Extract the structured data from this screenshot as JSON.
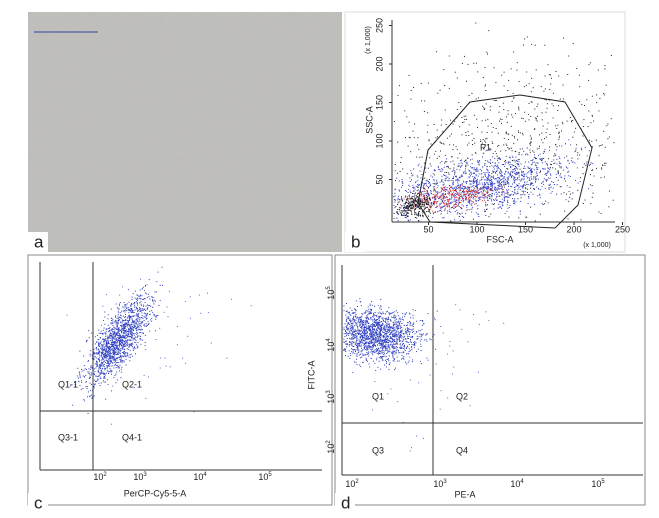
{
  "panels": [
    {
      "label": "a"
    },
    {
      "label": "b",
      "y_title": "SSC-A",
      "x_title": "FSC-A",
      "y_unit": "(x 1,000)",
      "x_unit": "(x 1,000)",
      "xticks": [
        50,
        100,
        150,
        200,
        250
      ],
      "yticks": [
        50,
        100,
        150,
        200,
        250
      ],
      "gate": "P1"
    },
    {
      "label": "c",
      "x_title": "PerCP-Cy5-5-A",
      "xticks": [
        {
          "base": "10",
          "exp": "2"
        },
        {
          "base": "10",
          "exp": "3"
        },
        {
          "base": "10",
          "exp": "4"
        },
        {
          "base": "10",
          "exp": "5"
        }
      ],
      "quadrants": [
        "Q1-1",
        "Q2-1",
        "Q3-1",
        "Q4-1"
      ]
    },
    {
      "label": "d",
      "x_title": "PE-A",
      "y_title": "FITC-A",
      "xticks": [
        {
          "base": "10",
          "exp": "2"
        },
        {
          "base": "10",
          "exp": "3"
        },
        {
          "base": "10",
          "exp": "4"
        },
        {
          "base": "10",
          "exp": "5"
        }
      ],
      "yticks": [
        {
          "base": "10",
          "exp": "5"
        },
        {
          "base": "10",
          "exp": "4"
        },
        {
          "base": "10",
          "exp": "3"
        },
        {
          "base": "10",
          "exp": "2"
        }
      ],
      "quadrants": [
        "Q1",
        "Q2",
        "Q3",
        "Q4"
      ]
    }
  ]
}
